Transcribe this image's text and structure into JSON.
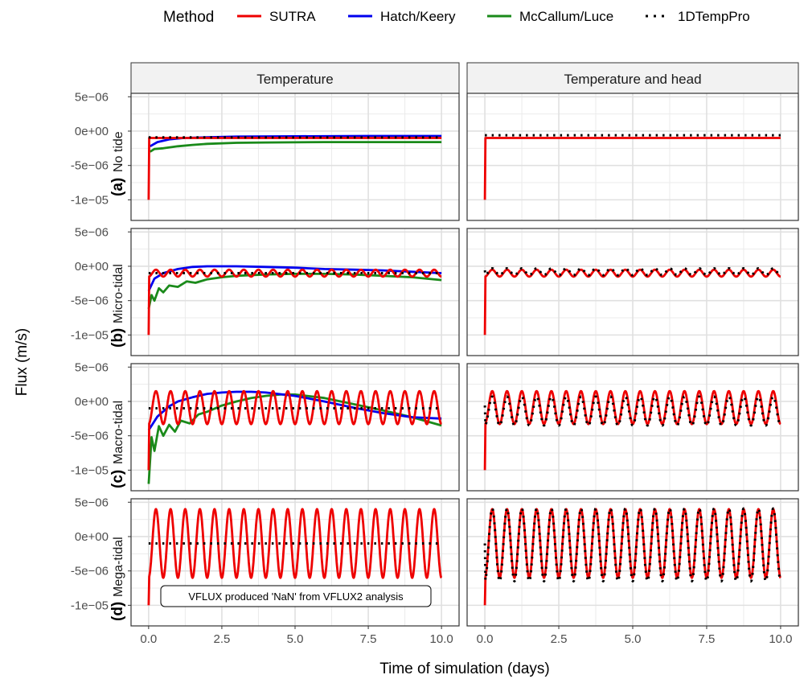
{
  "legend": {
    "title": "Method",
    "items": [
      {
        "label": "SUTRA",
        "color": "#ee0000",
        "dash": "solid"
      },
      {
        "label": "Hatch/Keery",
        "color": "#0000ee",
        "dash": "solid"
      },
      {
        "label": "McCallum/Luce",
        "color": "#1a8a1a",
        "dash": "solid"
      },
      {
        "label": "1DTempPro",
        "color": "#000000",
        "dash": "dotted"
      }
    ]
  },
  "columns": [
    {
      "label": "Temperature"
    },
    {
      "label": "Temperature and head"
    }
  ],
  "rows": [
    {
      "letter": "(a)",
      "label": "No tide"
    },
    {
      "letter": "(b)",
      "label": "Micro-tidal"
    },
    {
      "letter": "(c)",
      "label": "Macro-tidal"
    },
    {
      "letter": "(d)",
      "label": "Mega-tidal"
    }
  ],
  "xlabel": "Time of simulation (days)",
  "ylabel": "Flux (m/s)",
  "note": "VFLUX produced 'NaN' from VFLUX2 analysis",
  "chart_data": {
    "type": "line",
    "xlim": [
      -0.6,
      10.6
    ],
    "ylim": [
      -1.3e-05,
      5.5e-06
    ],
    "x_ticks": [
      0,
      2.5,
      5,
      7.5,
      10
    ],
    "x_tick_labels": [
      "0.0",
      "2.5",
      "5.0",
      "7.5",
      "10.0"
    ],
    "y_ticks": [
      5e-06,
      0,
      -5e-06,
      -1e-05
    ],
    "y_tick_labels": [
      "5e−06",
      "0e+00",
      "-5e−06",
      "-1e−05"
    ],
    "period_days": 0.5,
    "panels": [
      {
        "row": 0,
        "col": 0,
        "series": [
          {
            "name": "SUTRA",
            "kind": "tidal",
            "start": -1e-05,
            "mean": -1e-06,
            "amp": 0
          },
          {
            "name": "1DTempPro",
            "kind": "tidal",
            "start": -9e-07,
            "mean": -9e-07,
            "amp": 0
          },
          {
            "name": "Hatch/Keery",
            "kind": "points",
            "x": [
              0.05,
              0.3,
              0.7,
              1.2,
              2,
              3,
              5,
              7.5,
              10
            ],
            "y": [
              -2.2e-06,
              -1.6e-06,
              -1.2e-06,
              -1e-06,
              -9e-07,
              -8e-07,
              -7.5e-07,
              -7e-07,
              -7e-07
            ]
          },
          {
            "name": "McCallum/Luce",
            "kind": "points",
            "x": [
              0.05,
              0.2,
              0.5,
              1,
              1.5,
              2,
              3,
              4,
              6,
              8,
              10
            ],
            "y": [
              -3e-06,
              -2.6e-06,
              -2.5e-06,
              -2.2e-06,
              -2e-06,
              -1.85e-06,
              -1.7e-06,
              -1.65e-06,
              -1.6e-06,
              -1.6e-06,
              -1.6e-06
            ]
          }
        ]
      },
      {
        "row": 0,
        "col": 1,
        "series": [
          {
            "name": "SUTRA",
            "kind": "tidal",
            "start": -1e-05,
            "mean": -1e-06,
            "amp": 0
          },
          {
            "name": "1DTempPro",
            "kind": "tidal",
            "start": -6e-07,
            "mean": -6e-07,
            "amp": 0
          }
        ]
      },
      {
        "row": 1,
        "col": 0,
        "series": [
          {
            "name": "SUTRA",
            "kind": "tidal",
            "start": -1e-05,
            "mean": -1e-06,
            "amp": 5e-07
          },
          {
            "name": "1DTempPro",
            "kind": "tidal",
            "start": -1e-06,
            "mean": -1e-06,
            "amp": 0
          },
          {
            "name": "Hatch/Keery",
            "kind": "points",
            "x": [
              0,
              0.2,
              0.5,
              1,
              1.5,
              2,
              3,
              4,
              5,
              6,
              7,
              8,
              9,
              10
            ],
            "y": [
              -3.6e-06,
              -1.8e-06,
              -1e-06,
              -4e-07,
              -1e-07,
              0,
              0,
              -1e-07,
              -2e-07,
              -4e-07,
              -5e-07,
              -6e-07,
              -8e-07,
              -1e-06
            ]
          },
          {
            "name": "McCallum/Luce",
            "kind": "points",
            "x": [
              0,
              0.1,
              0.2,
              0.35,
              0.5,
              0.7,
              1,
              1.3,
              1.6,
              2,
              2.5,
              3,
              4,
              5,
              6,
              7,
              8,
              9,
              10
            ],
            "y": [
              -6.2e-06,
              -4.2e-06,
              -5e-06,
              -3.2e-06,
              -3.8e-06,
              -2.8e-06,
              -3e-06,
              -2.2e-06,
              -2.4e-06,
              -1.9e-06,
              -1.6e-06,
              -1.4e-06,
              -1.2e-06,
              -1.1e-06,
              -1.1e-06,
              -1.2e-06,
              -1.4e-06,
              -1.6e-06,
              -2e-06
            ]
          }
        ]
      },
      {
        "row": 1,
        "col": 1,
        "series": [
          {
            "name": "SUTRA",
            "kind": "tidal",
            "start": -1e-05,
            "mean": -1e-06,
            "amp": 5e-07
          },
          {
            "name": "1DTempPro",
            "kind": "tidal",
            "start": -6e-07,
            "mean": -8e-07,
            "amp": 5e-07
          }
        ]
      },
      {
        "row": 2,
        "col": 0,
        "series": [
          {
            "name": "SUTRA",
            "kind": "tidal",
            "start": -1e-05,
            "mean": -9e-07,
            "amp": 2.4e-06
          },
          {
            "name": "1DTempPro",
            "kind": "tidal",
            "start": -1e-06,
            "mean": -1e-06,
            "amp": 0
          },
          {
            "name": "Hatch/Keery",
            "kind": "points",
            "x": [
              0,
              0.3,
              0.7,
              1,
              1.5,
              2,
              2.5,
              3,
              3.5,
              4,
              5,
              6,
              7,
              8,
              9,
              10
            ],
            "y": [
              -4.2e-06,
              -2.2e-06,
              -7e-07,
              0,
              6e-07,
              1.1e-06,
              1.3e-06,
              1.4e-06,
              1.4e-06,
              1.3e-06,
              8e-07,
              0,
              -9e-07,
              -1.7e-06,
              -2.3e-06,
              -2.5e-06
            ]
          },
          {
            "name": "McCallum/Luce",
            "kind": "points",
            "x": [
              0,
              0.1,
              0.2,
              0.35,
              0.5,
              0.7,
              0.9,
              1.1,
              1.4,
              1.7,
              2,
              2.5,
              3,
              3.5,
              4,
              4.5,
              5,
              6,
              7,
              8,
              9,
              10
            ],
            "y": [
              -1.2e-05,
              -5.2e-06,
              -7.2e-06,
              -3.6e-06,
              -5e-06,
              -3.4e-06,
              -4.4e-06,
              -2.8e-06,
              -3.2e-06,
              -1.9e-06,
              -1.5e-06,
              -6e-07,
              0,
              5e-07,
              8e-07,
              1e-06,
              1e-06,
              5e-07,
              -4e-07,
              -1.3e-06,
              -2.3e-06,
              -3.5e-06
            ]
          }
        ]
      },
      {
        "row": 2,
        "col": 1,
        "series": [
          {
            "name": "SUTRA",
            "kind": "tidal",
            "start": -1e-05,
            "mean": -9e-07,
            "amp": 2.4e-06
          },
          {
            "name": "1DTempPro",
            "kind": "tidal",
            "start": -6e-07,
            "mean": -1.4e-06,
            "amp": 2.1e-06
          }
        ]
      },
      {
        "row": 3,
        "col": 0,
        "series": [
          {
            "name": "SUTRA",
            "kind": "tidal",
            "start": -1e-05,
            "mean": -1e-06,
            "amp": 5e-06
          },
          {
            "name": "1DTempPro",
            "kind": "tidal",
            "start": -1e-06,
            "mean": -1e-06,
            "amp": 0
          }
        ]
      },
      {
        "row": 3,
        "col": 1,
        "series": [
          {
            "name": "SUTRA",
            "kind": "tidal",
            "start": -1e-05,
            "mean": -1e-06,
            "amp": 5e-06
          },
          {
            "name": "1DTempPro",
            "kind": "tidal",
            "start": -1e-06,
            "mean": -1.2e-06,
            "amp": 5.3e-06
          }
        ]
      }
    ]
  }
}
